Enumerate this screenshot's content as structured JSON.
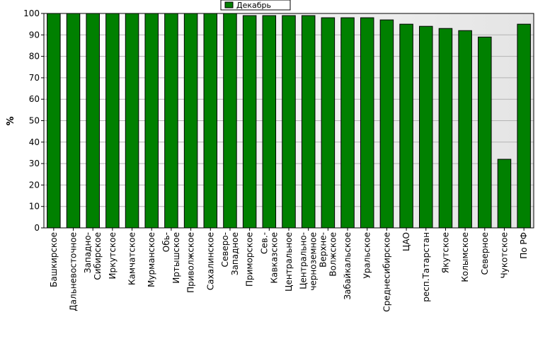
{
  "chart_data": {
    "type": "bar",
    "title": "",
    "xlabel": "",
    "ylabel": "%",
    "ylim": [
      0,
      100
    ],
    "yticks": [
      0,
      10,
      20,
      30,
      40,
      50,
      60,
      70,
      80,
      90,
      100
    ],
    "grid": true,
    "legend_position": "top-center",
    "categories": [
      "Башкирское",
      "Дальневосточное",
      "Западно-\nСибирское",
      "Иркутское",
      "Камчатское",
      "Мурманское",
      "Обь-\nИртышское",
      "Приволжское",
      "Сахалинское",
      "Северо-\nЗападное",
      "Приморское",
      "Сев.-\nКавказское",
      "Центральное",
      "Центрально-\nчерноземное",
      "Верхне-\nВолжское",
      "Забайкальское",
      "Уральское",
      "Среднесибирское",
      "ЦАО",
      "респ.Татарстан",
      "Якутское",
      "Колымское",
      "Северное",
      "Чукотское",
      "По РФ"
    ],
    "series": [
      {
        "name": "Декабрь",
        "color": "#008000",
        "values": [
          100,
          100,
          100,
          100,
          100,
          100,
          100,
          100,
          100,
          100,
          99,
          99,
          99,
          99,
          98,
          98,
          98,
          97,
          95,
          94,
          93,
          92,
          89,
          32,
          95
        ]
      }
    ]
  }
}
